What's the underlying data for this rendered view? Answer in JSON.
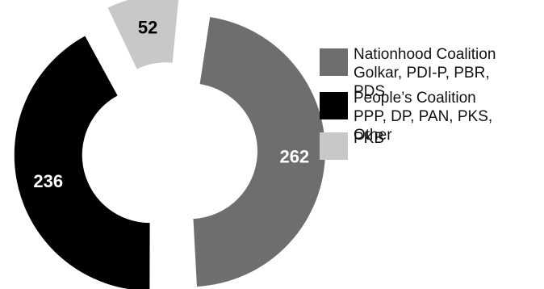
{
  "chart_data": {
    "type": "pie",
    "style": "exploded-donut",
    "slices": [
      {
        "label": "PKB",
        "value": 52,
        "color": "#c8c8c8"
      },
      {
        "label": "Nationhood Coalition Golkar, PDI-P, PBR, PDS",
        "value": 262,
        "color": "#6e6e6e"
      },
      {
        "label": "People's Coalition PPP, DP, PAN, PKS, Other",
        "value": 236,
        "color": "#000000"
      }
    ],
    "legend_placement": "right",
    "legend": [
      {
        "lines": [
          "Nationhood Coalition",
          "Golkar, PDI-P, PBR,",
          "PDS"
        ],
        "color": "#6e6e6e"
      },
      {
        "lines": [
          "People’s Coalition",
          "PPP, DP, PAN, PKS,",
          "Other"
        ],
        "color": "#000000"
      },
      {
        "lines": [
          "PKB"
        ],
        "color": "#c8c8c8"
      }
    ]
  }
}
